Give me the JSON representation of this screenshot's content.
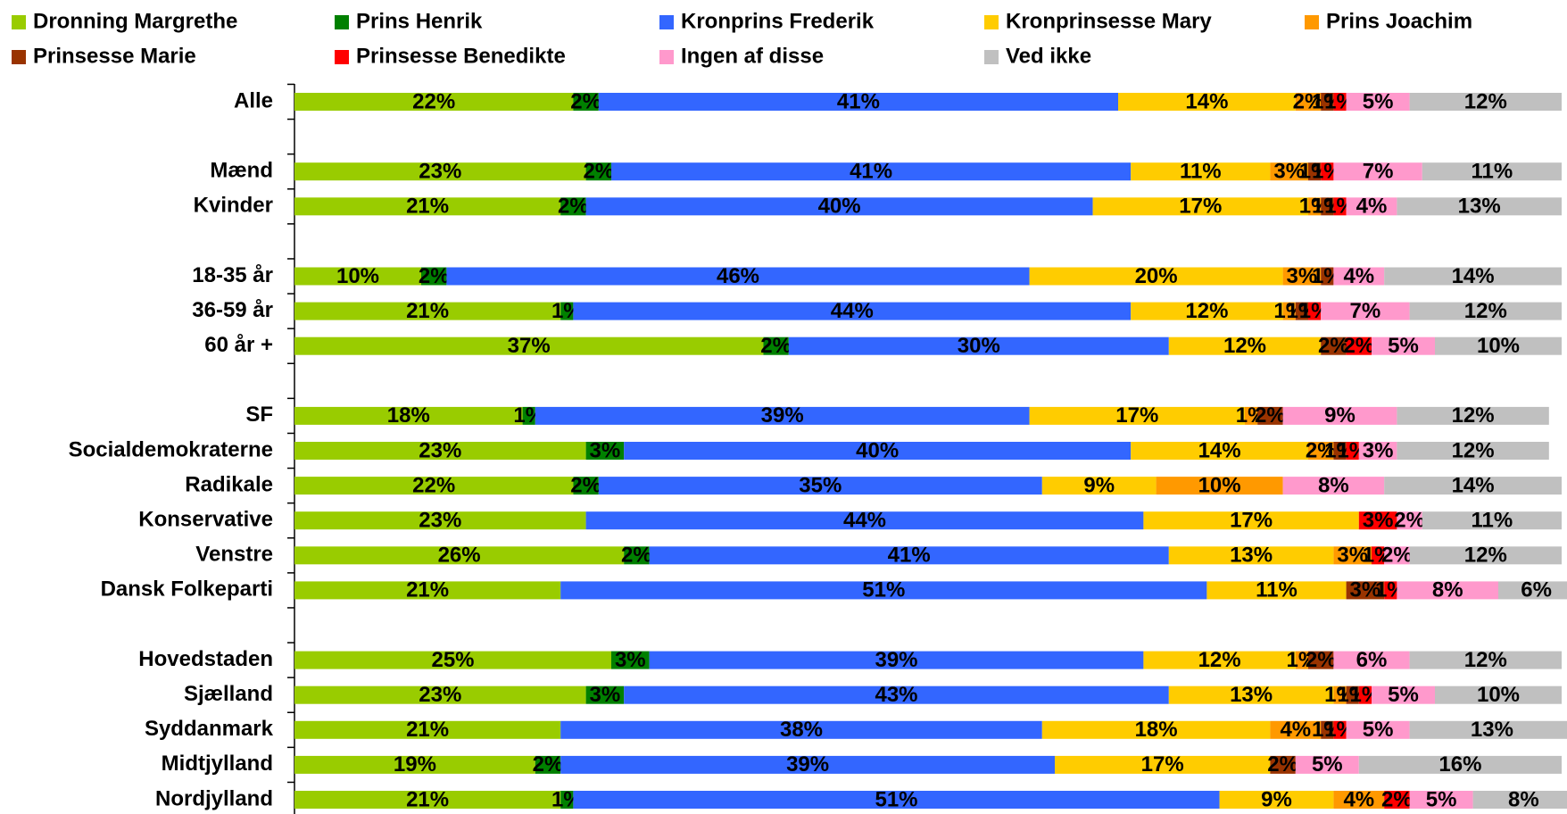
{
  "chart_data": {
    "type": "stacked_bar_horizontal",
    "categories": [
      "Alle",
      null,
      "Mænd",
      "Kvinder",
      null,
      "18-35 år",
      "36-59 år",
      "60 år +",
      null,
      "SF",
      "Socialdemokraterne",
      "Radikale",
      "Konservative",
      "Venstre",
      "Dansk Folkeparti",
      null,
      "Hovedstaden",
      "Sjælland",
      "Syddanmark",
      "Midtjylland",
      "Nordjylland"
    ],
    "xlim": [
      0,
      100
    ],
    "legend": "top",
    "series": [
      {
        "name": "Dronning Margrethe",
        "color": "#99cc00",
        "values": [
          22,
          null,
          23,
          21,
          null,
          10,
          21,
          37,
          null,
          18,
          23,
          22,
          23,
          26,
          21,
          null,
          25,
          23,
          21,
          19,
          21
        ],
        "value_labels": [
          "22%",
          null,
          "23%",
          "21%",
          null,
          "10%",
          "21%",
          "37%",
          null,
          "18%",
          "23%",
          "22%",
          "23%",
          "26%",
          "21%",
          null,
          "25%",
          "23%",
          "21%",
          "19%",
          "21%"
        ]
      },
      {
        "name": "Prins Henrik",
        "color": "#008000",
        "values": [
          2,
          null,
          2,
          2,
          null,
          2,
          1,
          2,
          null,
          1,
          3,
          2,
          0,
          2,
          0,
          null,
          3,
          3,
          0,
          2,
          1
        ],
        "value_labels": [
          "2%",
          null,
          "2%",
          "2%",
          null,
          "2%",
          "1%",
          "2%",
          null,
          "1%",
          "3%",
          "2%",
          null,
          "2%",
          null,
          null,
          "3%",
          "3%",
          null,
          "2%",
          "1%"
        ]
      },
      {
        "name": "Kronprins Frederik",
        "color": "#3366ff",
        "values": [
          41,
          null,
          41,
          40,
          null,
          46,
          44,
          30,
          null,
          39,
          40,
          35,
          44,
          41,
          51,
          null,
          39,
          43,
          38,
          39,
          51
        ],
        "value_labels": [
          "41%",
          null,
          "41%",
          "40%",
          null,
          "46%",
          "44%",
          "30%",
          null,
          "39%",
          "40%",
          "35%",
          "44%",
          "41%",
          "51%",
          null,
          "39%",
          "43%",
          "38%",
          "39%",
          "51%"
        ]
      },
      {
        "name": "Kronprinsesse Mary",
        "color": "#ffcc00",
        "values": [
          14,
          null,
          11,
          17,
          null,
          20,
          12,
          12,
          null,
          17,
          14,
          9,
          17,
          13,
          11,
          null,
          12,
          13,
          18,
          17,
          9
        ],
        "value_labels": [
          "14%",
          null,
          "11%",
          "17%",
          null,
          "20%",
          "12%",
          "12%",
          null,
          "17%",
          "14%",
          "9%",
          "17%",
          "13%",
          "11%",
          null,
          "12%",
          "13%",
          "18%",
          "17%",
          "9%"
        ]
      },
      {
        "name": "Prins Joachim",
        "color": "#ff9900",
        "values": [
          2,
          null,
          3,
          1,
          null,
          3,
          1,
          0,
          null,
          1,
          2,
          10,
          0,
          3,
          0,
          null,
          1,
          1,
          4,
          0,
          4
        ],
        "value_labels": [
          "2%",
          null,
          "3%",
          "1%",
          null,
          "3%",
          "1%",
          null,
          null,
          "1%",
          "2%",
          "10%",
          null,
          "3%",
          null,
          null,
          "1%",
          "1%",
          "4%",
          null,
          "4%"
        ]
      },
      {
        "name": "Prinsesse Marie",
        "color": "#993300",
        "values": [
          1,
          null,
          1,
          1,
          null,
          1,
          1,
          2,
          null,
          2,
          1,
          0,
          0,
          0,
          3,
          null,
          2,
          1,
          1,
          2,
          0
        ],
        "value_labels": [
          "1%",
          null,
          "1%",
          "1%",
          null,
          "1%",
          "1%",
          "2%",
          null,
          "2%",
          "1%",
          null,
          null,
          null,
          "3%",
          null,
          "2%",
          "1%",
          "1%",
          "2%",
          null
        ]
      },
      {
        "name": "Prinsesse Benedikte",
        "color": "#ff0000",
        "values": [
          1,
          null,
          1,
          1,
          null,
          0,
          1,
          2,
          null,
          0,
          1,
          0,
          3,
          1,
          1,
          null,
          0,
          1,
          1,
          0,
          2
        ],
        "value_labels": [
          "1%",
          null,
          "1%",
          "1%",
          null,
          null,
          "1%",
          "2%",
          null,
          null,
          "1%",
          null,
          "3%",
          "1%",
          "1%",
          null,
          null,
          "1%",
          "1%",
          null,
          "2%"
        ]
      },
      {
        "name": "Ingen af disse",
        "color": "#ff99cc",
        "values": [
          5,
          null,
          7,
          4,
          null,
          4,
          7,
          5,
          null,
          9,
          3,
          8,
          2,
          2,
          8,
          null,
          6,
          5,
          5,
          5,
          5
        ],
        "value_labels": [
          "5%",
          null,
          "7%",
          "4%",
          null,
          "4%",
          "7%",
          "5%",
          null,
          "9%",
          "3%",
          "8%",
          "2%",
          "2%",
          "8%",
          null,
          "6%",
          "5%",
          "5%",
          "5%",
          "5%"
        ]
      },
      {
        "name": "Ved ikke",
        "color": "#c0c0c0",
        "values": [
          12,
          null,
          11,
          13,
          null,
          14,
          12,
          10,
          null,
          12,
          12,
          14,
          11,
          12,
          6,
          null,
          12,
          10,
          13,
          16,
          8
        ],
        "value_labels": [
          "12%",
          null,
          "11%",
          "13%",
          null,
          "14%",
          "12%",
          "10%",
          null,
          "12%",
          "12%",
          "14%",
          "11%",
          "12%",
          "6%",
          null,
          "12%",
          "10%",
          "13%",
          "16%",
          "8%"
        ]
      }
    ]
  }
}
